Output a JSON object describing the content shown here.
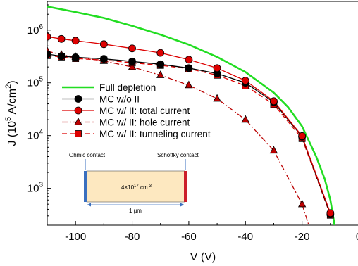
{
  "chart_data": {
    "type": "line",
    "xlabel": "V (V)",
    "ylabel_main": "J (10",
    "ylabel_exp": "5",
    "ylabel_mid": " A/cm",
    "ylabel_sq": "2",
    "ylabel_end": ")",
    "x_scale": "linear",
    "y_scale": "log",
    "xlim": [
      -110,
      0
    ],
    "ylim": [
      200,
      3500000
    ],
    "x_ticks": [
      -100,
      -80,
      -60,
      -40,
      -20,
      0
    ],
    "x_tick_labels": [
      "-100",
      "-80",
      "-60",
      "-40",
      "-20",
      "0"
    ],
    "y_ticks": [
      1000,
      10000,
      100000,
      1000000
    ],
    "y_tick_base": "10",
    "y_tick_exps": [
      "3",
      "4",
      "5",
      "6"
    ],
    "grid": false,
    "legend_placement": "center-left",
    "series": [
      {
        "name": "Full depletion",
        "color": "#22dd22",
        "style": "solid",
        "marker": "none",
        "x": [
          -110,
          -100,
          -90,
          -80,
          -70,
          -60,
          -50,
          -40,
          -30,
          -25,
          -20,
          -15,
          -12,
          -10,
          -8.5
        ],
        "y": [
          2800000,
          2200000,
          1700000,
          1200000,
          820000,
          530000,
          310000,
          160000,
          65000,
          35000,
          15000,
          4000,
          1500,
          600,
          200
        ]
      },
      {
        "name": "MC w/o II",
        "color": "#000000",
        "style": "solid",
        "marker": "circle",
        "x": [
          -110,
          -105,
          -100,
          -90,
          -80,
          -70,
          -60,
          -50,
          -40,
          -30,
          -20,
          -10
        ],
        "y": [
          350000,
          320000,
          305000,
          285000,
          255000,
          225000,
          190000,
          150000,
          100000,
          43000,
          9500,
          320
        ]
      },
      {
        "name": "MC w/ II: total current",
        "color": "#dd0000",
        "style": "solid",
        "marker": "circle",
        "x": [
          -110,
          -105,
          -100,
          -90,
          -80,
          -70,
          -60,
          -50,
          -40,
          -30,
          -20,
          -10
        ],
        "y": [
          750000,
          680000,
          630000,
          540000,
          450000,
          370000,
          275000,
          190000,
          110000,
          45000,
          9800,
          340
        ]
      },
      {
        "name": "MC w/ II: hole current",
        "color": "#bb0000",
        "style": "dashdot",
        "marker": "triangle",
        "x": [
          -110,
          -105,
          -100,
          -90,
          -80,
          -70,
          -60,
          -50,
          -40,
          -30,
          -20,
          -14
        ],
        "y": [
          400000,
          340000,
          310000,
          260000,
          200000,
          140000,
          90000,
          50000,
          20000,
          5200,
          500,
          50
        ]
      },
      {
        "name": "MC w/ II: tunneling current",
        "color": "#dd0000",
        "style": "dash",
        "marker": "square",
        "x": [
          -110,
          -105,
          -100,
          -90,
          -80,
          -70,
          -60,
          -50,
          -40,
          -30,
          -20,
          -10
        ],
        "y": [
          330000,
          310000,
          290000,
          270000,
          240000,
          215000,
          185000,
          140000,
          88000,
          39000,
          8800,
          310
        ]
      }
    ],
    "inset": {
      "left_label": "Ohmic contact",
      "right_label": "Schottky contact",
      "doping_main": "4×10",
      "doping_exp": "17",
      "doping_unit": " cm",
      "doping_unit_exp": "-3",
      "length_label": "1 µm",
      "fill_color": "#fde8c0",
      "left_contact_color": "#3a6fbf",
      "right_contact_color": "#cc1f2a"
    }
  }
}
